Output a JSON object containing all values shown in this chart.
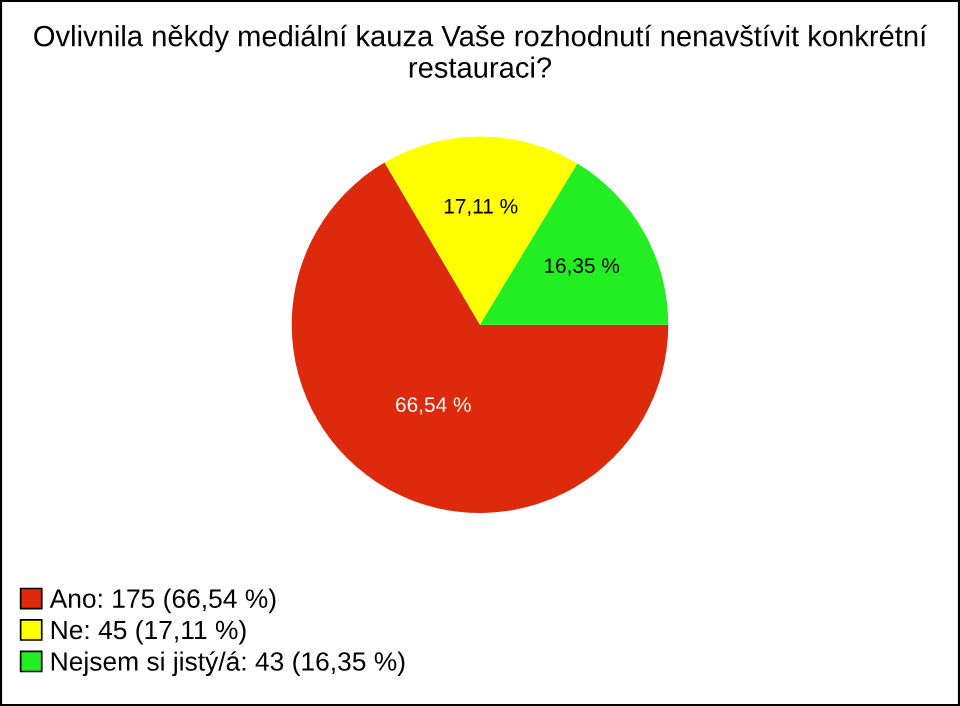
{
  "chart_data": {
    "type": "pie",
    "title": "Ovlivnila někdy mediální kauza Vaše rozhodnutí nenavštívit konkrétní restauraci?",
    "categories": [
      "Ano: 175 (66,54 %)",
      "Ne: 45 (17,11 %)",
      "Nejsem si jistý/á: 43 (16,35 %)"
    ],
    "values": [
      66.54,
      17.11,
      16.35
    ],
    "value_labels": [
      "66,54 %",
      "17,11 %",
      "16,35 %"
    ],
    "colors": [
      "#dd2a0c",
      "#ffff00",
      "#22ee22"
    ],
    "legend": "bottom left"
  }
}
